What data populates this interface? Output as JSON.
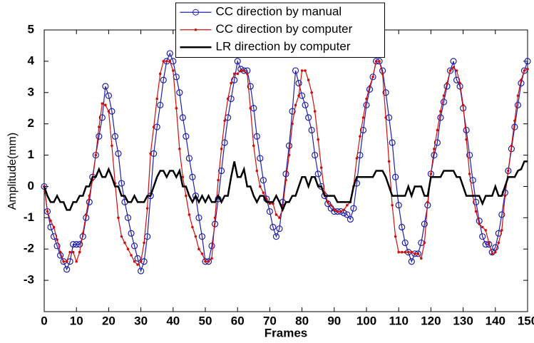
{
  "chart_data": {
    "type": "line",
    "xlabel": "Frames",
    "ylabel": "Amplitude(mm)",
    "x": [
      0,
      1,
      2,
      3,
      4,
      5,
      6,
      7,
      8,
      9,
      10,
      11,
      12,
      13,
      14,
      15,
      16,
      17,
      18,
      19,
      20,
      21,
      22,
      23,
      24,
      25,
      26,
      27,
      28,
      29,
      30,
      31,
      32,
      33,
      34,
      35,
      36,
      37,
      38,
      39,
      40,
      41,
      42,
      43,
      44,
      45,
      46,
      47,
      48,
      49,
      50,
      51,
      52,
      53,
      54,
      55,
      56,
      57,
      58,
      59,
      60,
      61,
      62,
      63,
      64,
      65,
      66,
      67,
      68,
      69,
      70,
      71,
      72,
      73,
      74,
      75,
      76,
      77,
      78,
      79,
      80,
      81,
      82,
      83,
      84,
      85,
      86,
      87,
      88,
      89,
      90,
      91,
      92,
      93,
      94,
      95,
      96,
      97,
      98,
      99,
      100,
      101,
      102,
      103,
      104,
      105,
      106,
      107,
      108,
      109,
      110,
      111,
      112,
      113,
      114,
      115,
      116,
      117,
      118,
      119,
      120,
      121,
      122,
      123,
      124,
      125,
      126,
      127,
      128,
      129,
      130,
      131,
      132,
      133,
      134,
      135,
      136,
      137,
      138,
      139,
      140,
      141,
      142,
      143,
      144,
      145,
      146,
      147,
      148,
      149,
      150
    ],
    "series": [
      {
        "name": "CC direction by manual",
        "color": "#1f1fa8",
        "marker": "circle",
        "line_width": 1.2,
        "values": [
          0,
          -0.8,
          -1.3,
          -1.6,
          -1.9,
          -2.2,
          -2.4,
          -2.65,
          -2.4,
          -1.85,
          -1.85,
          -1.85,
          -1.6,
          -1.0,
          -0.5,
          0.3,
          1.0,
          1.6,
          2.2,
          3.2,
          2.9,
          2.4,
          1.6,
          1.05,
          0.1,
          -0.5,
          -1.0,
          -1.5,
          -1.9,
          -2.3,
          -2.7,
          -2.4,
          -1.6,
          -0.3,
          1.05,
          1.9,
          2.6,
          3.4,
          4.0,
          4.25,
          4.0,
          3.5,
          3.0,
          2.2,
          1.6,
          0.9,
          0.3,
          -0.3,
          -1.0,
          -1.6,
          -2.4,
          -2.4,
          -1.9,
          -1.2,
          -0.4,
          0.5,
          1.4,
          2.2,
          2.8,
          3.4,
          4.0,
          3.75,
          3.7,
          3.7,
          3.2,
          2.5,
          1.6,
          0.9,
          0.2,
          -0.4,
          -0.8,
          -1.3,
          -1.6,
          -1.35,
          -0.5,
          0.4,
          1.3,
          2.4,
          3.7,
          3.3,
          2.9,
          2.6,
          2.2,
          1.8,
          1.0,
          0.4,
          0,
          -0.3,
          -0.55,
          -0.7,
          -0.8,
          -0.8,
          -0.8,
          -0.85,
          -0.9,
          -1.05,
          -0.7,
          0.1,
          1.0,
          1.8,
          2.6,
          3.1,
          3.5,
          4.0,
          4.0,
          3.7,
          3.0,
          2.2,
          1.4,
          0.3,
          -0.6,
          -1.3,
          -1.8,
          -2.1,
          -2.4,
          -2.15,
          -2.15,
          -1.8,
          -1.2,
          -0.6,
          0.4,
          1.0,
          1.4,
          2.2,
          2.7,
          3.2,
          3.7,
          4.0,
          3.4,
          3.2,
          2.5,
          1.8,
          1.0,
          0.2,
          -0.5,
          -1.1,
          -1.6,
          -1.85,
          -1.85,
          -2.1,
          -1.95,
          -1.5,
          -0.9,
          -0.2,
          0.5,
          1.2,
          1.9,
          2.6,
          3.3,
          3.7,
          4.0
        ]
      },
      {
        "name": "CC direction by computer",
        "color": "#cc1010",
        "marker": "dot",
        "line_width": 1.2,
        "values": [
          0,
          -0.8,
          -1.1,
          -1.3,
          -1.7,
          -2.1,
          -2.4,
          -2.4,
          -2.1,
          -2.1,
          -2.4,
          -2.1,
          -1.5,
          -0.9,
          -0.3,
          0.2,
          1.0,
          1.9,
          2.65,
          2.6,
          2.4,
          1.3,
          0.1,
          -1.0,
          -1.6,
          -1.8,
          -2.0,
          -2.2,
          -2.4,
          -2.5,
          -2.4,
          -1.8,
          -0.7,
          1.05,
          1.9,
          2.8,
          3.6,
          4.0,
          4.0,
          4.0,
          3.7,
          2.5,
          1.2,
          0.3,
          -0.3,
          -0.9,
          -1.3,
          -1.6,
          -2.0,
          -2.15,
          -2.4,
          -2.4,
          -2.3,
          -1.0,
          0.2,
          1.2,
          2.1,
          2.8,
          3.3,
          3.6,
          3.6,
          3.7,
          3.7,
          3.6,
          2.5,
          1.3,
          0.5,
          0,
          -0.2,
          -0.4,
          -0.55,
          -0.55,
          -0.9,
          -1.0,
          -0.7,
          0.2,
          1.0,
          2.0,
          2.6,
          2.9,
          3.7,
          3.7,
          3.4,
          3.0,
          2.4,
          1.5,
          0.6,
          -0.2,
          -0.5,
          -0.6,
          -0.75,
          -0.8,
          -0.8,
          -0.75,
          -0.6,
          -0.5,
          0,
          0.9,
          1.6,
          2.2,
          2.8,
          3.2,
          3.5,
          4.0,
          4.0,
          3.6,
          2.2,
          0.8,
          -0.6,
          -1.6,
          -2.1,
          -2.1,
          -2.1,
          -2.1,
          -2.1,
          -2.15,
          -2.15,
          -2.3,
          -1.8,
          -0.5,
          0.4,
          1.2,
          1.8,
          2.4,
          2.9,
          3.3,
          3.7,
          3.8,
          3.7,
          3.3,
          2.6,
          1.5,
          0.4,
          -0.3,
          -0.8,
          -1.2,
          -1.3,
          -1.4,
          -1.8,
          -2.15,
          -2.1,
          -1.8,
          -1.4,
          -0.3,
          0.5,
          1.3,
          2.1,
          2.9,
          3.4,
          3.7,
          3.75
        ]
      },
      {
        "name": "LR direction by computer",
        "color": "#000000",
        "marker": "none",
        "line_width": 2.5,
        "values": [
          0,
          -0.3,
          -0.5,
          -0.5,
          -0.3,
          -0.5,
          -0.5,
          -0.75,
          -0.75,
          -0.5,
          -0.5,
          -0.3,
          -0.3,
          0,
          0,
          0.3,
          0.3,
          0.55,
          0.3,
          0.3,
          0.55,
          0.3,
          0,
          0,
          -0.3,
          -0.3,
          -0.5,
          -0.5,
          -0.3,
          -0.5,
          -0.5,
          -0.5,
          -0.3,
          -0.3,
          0,
          0.3,
          0.5,
          0.5,
          0.3,
          0.5,
          0.5,
          0.3,
          0.5,
          0,
          0,
          -0.3,
          -0.5,
          -0.3,
          -0.5,
          -0.3,
          -0.5,
          -0.3,
          -0.5,
          -0.5,
          -0.3,
          -0.5,
          -0.3,
          -0.3,
          0.3,
          0.8,
          0.3,
          0.3,
          0.55,
          0,
          0,
          -0.3,
          -0.5,
          -0.3,
          -0.3,
          -0.5,
          -0.5,
          -0.5,
          -0.3,
          -0.5,
          -0.75,
          -0.5,
          -0.5,
          -0.3,
          -0.3,
          0,
          0.3,
          0.3,
          0,
          0.3,
          0.3,
          0,
          0,
          -0.3,
          -0.3,
          -0.3,
          -0.3,
          -0.5,
          -0.5,
          -0.5,
          -0.5,
          -0.5,
          0,
          0.3,
          0.3,
          0.3,
          0.3,
          0.3,
          0.3,
          0.5,
          0.5,
          0.5,
          0.3,
          0,
          -0.3,
          -0.3,
          -0.3,
          -0.3,
          -0.3,
          0,
          -0.3,
          0,
          0,
          0,
          -0.3,
          -0.3,
          0.3,
          0.3,
          0.3,
          0.3,
          0.5,
          0.5,
          0.5,
          0.5,
          0.3,
          0.3,
          0,
          -0.3,
          -0.3,
          -0.3,
          -0.3,
          -0.3,
          -0.55,
          -0.3,
          -0.3,
          -0.3,
          0,
          -0.3,
          -0.3,
          0,
          0.3,
          0.3,
          0.3,
          0.5,
          0.55,
          0.8,
          0.8
        ]
      }
    ],
    "xlim": [
      0,
      150
    ],
    "xticks": [
      0,
      10,
      20,
      30,
      40,
      50,
      60,
      70,
      80,
      90,
      100,
      110,
      120,
      130,
      140,
      150
    ],
    "ylim": [
      -4,
      5
    ],
    "yticks": [
      -3,
      -2,
      -1,
      0,
      1,
      2,
      3,
      4,
      5
    ],
    "grid": false,
    "legend": "top"
  }
}
